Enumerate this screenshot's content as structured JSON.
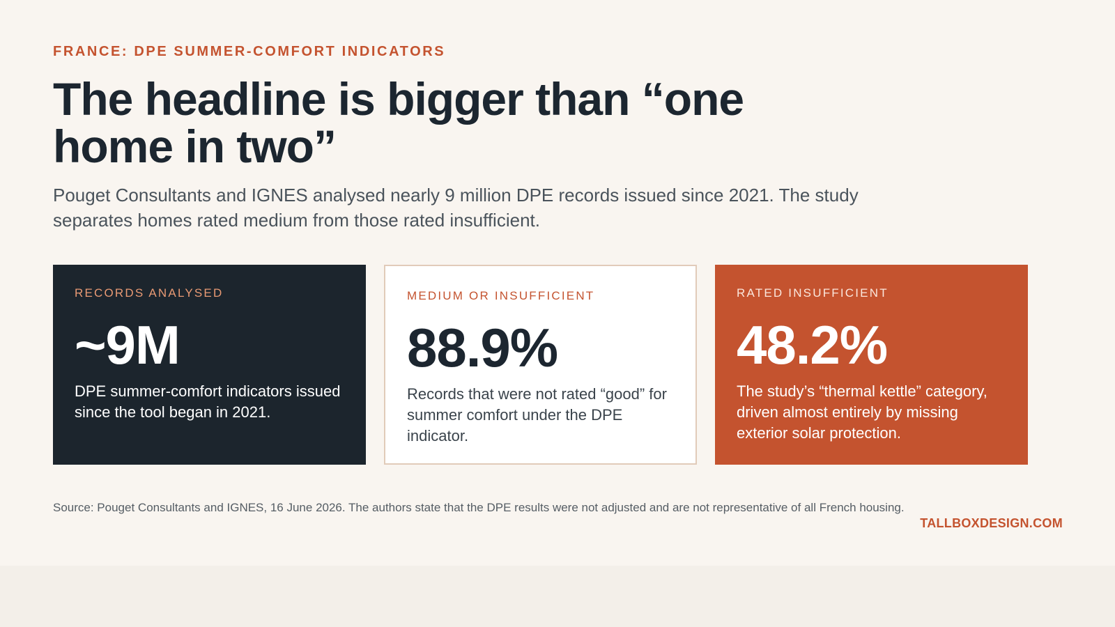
{
  "eyebrow": "FRANCE: DPE SUMMER-COMFORT INDICATORS",
  "headline": "The headline is bigger than “one home in two”",
  "lede": "Pouget Consultants and IGNES analysed nearly 9 million DPE records issued since 2021. The study separates homes rated medium from those rated insufficient.",
  "cards": [
    {
      "label": "RECORDS ANALYSED",
      "value": "~9M",
      "description": "DPE summer-comfort indicators issued since the tool began in 2021."
    },
    {
      "label": "MEDIUM OR INSUFFICIENT",
      "value": "88.9%",
      "description": "Records that were not rated “good” for summer comfort under the DPE indicator."
    },
    {
      "label": "RATED INSUFFICIENT",
      "value": "48.2%",
      "description": "The study’s “thermal kettle” category, driven almost entirely by missing exterior solar protection."
    }
  ],
  "source": "Source: Pouget Consultants and IGNES, 16 June 2026. The authors state that the DPE results were not adjusted and are not representative of all French housing.",
  "brand": "TALLBOXDESIGN.COM",
  "colors": {
    "accent": "#c4532f",
    "dark": "#1c252d",
    "background": "#f9f5f0"
  }
}
